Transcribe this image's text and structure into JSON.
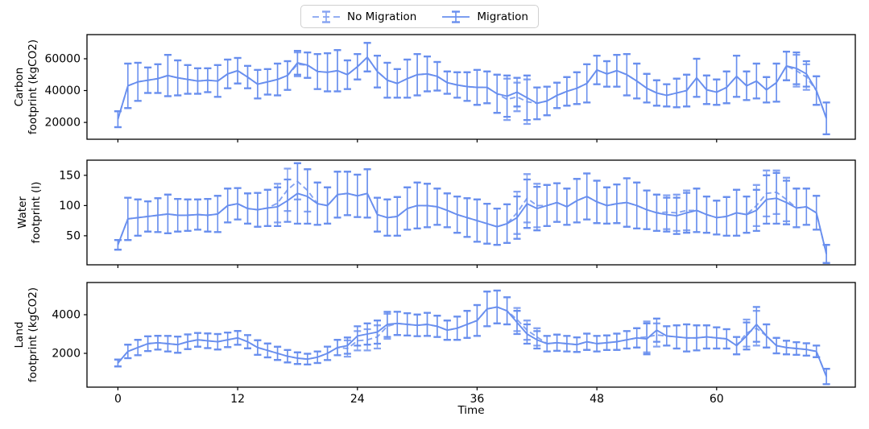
{
  "figure": {
    "series_color": "#698fee",
    "series_color_light": "#85a3f1",
    "axis_color": "#000000",
    "background": "#ffffff"
  },
  "legend": {
    "items": [
      {
        "label": "No Migration",
        "style": "dashed"
      },
      {
        "label": "Migration",
        "style": "solid"
      }
    ]
  },
  "xlabel": "Time",
  "x_ticks": [
    0,
    12,
    24,
    36,
    48,
    60
  ],
  "xlim": [
    -3.1,
    73.9
  ],
  "x_range": {
    "start": 0,
    "end": 71,
    "step": 1
  },
  "chart_data": [
    {
      "type": "line",
      "ylabel": "Carbon\nfootprint (kgCO2)",
      "y_ticks": [
        20000,
        40000,
        60000
      ],
      "ylim": [
        9400,
        75200
      ],
      "err": [
        5000,
        14000,
        12000,
        8000,
        9000,
        13000,
        11000,
        9000,
        8000,
        7500,
        10000,
        9000,
        8000,
        7000,
        9000,
        8000,
        10000,
        9000,
        7500,
        8000,
        11000,
        12000,
        13000,
        9000,
        8000,
        9000,
        10000,
        11000,
        9000,
        12000,
        13000,
        11000,
        9000,
        7000,
        8000,
        9000,
        11000,
        10000,
        12000,
        13000,
        9000,
        14000,
        10000,
        9000,
        8000,
        9000,
        10000,
        12000,
        9000,
        8000,
        10000,
        13000,
        11000,
        9000,
        8000,
        7000,
        9000,
        10000,
        12000,
        9000,
        8000,
        10000,
        13000,
        9000,
        11000,
        8000,
        12000,
        9000,
        10000,
        8000,
        9000,
        10000
      ],
      "series": [
        {
          "name": "No Migration",
          "style": "dashed",
          "values": [
            22000,
            43000,
            45500,
            46500,
            47500,
            49500,
            48000,
            47000,
            46000,
            46500,
            46000,
            50500,
            52500,
            48500,
            44000,
            45500,
            47000,
            49500,
            56500,
            56000,
            52000,
            51500,
            52500,
            50000,
            55000,
            61000,
            52000,
            46500,
            44500,
            47500,
            50000,
            50500,
            49000,
            45000,
            43500,
            42500,
            42000,
            42000,
            38000,
            34500,
            36000,
            33000,
            32000,
            33500,
            37000,
            39500,
            41500,
            44500,
            53000,
            50500,
            52500,
            50000,
            46000,
            41500,
            38500,
            37000,
            38500,
            40000,
            48000,
            40500,
            39000,
            42000,
            49000,
            43000,
            46000,
            40500,
            45000,
            55500,
            52500,
            48500,
            40000,
            22500
          ]
        },
        {
          "name": "Migration",
          "style": "solid",
          "values": [
            22000,
            43000,
            45500,
            46500,
            47500,
            49500,
            48000,
            47000,
            46000,
            46500,
            46000,
            50500,
            52500,
            48500,
            44000,
            45500,
            47000,
            49500,
            57500,
            56000,
            52000,
            51500,
            52500,
            50000,
            55000,
            61000,
            52000,
            46500,
            44500,
            47500,
            50000,
            50500,
            49000,
            45000,
            43500,
            42500,
            42000,
            42000,
            38000,
            36500,
            39000,
            35500,
            32000,
            33500,
            37000,
            39500,
            41500,
            44500,
            53000,
            50500,
            52500,
            50000,
            46000,
            41500,
            38500,
            37000,
            38500,
            40000,
            48000,
            40500,
            39000,
            42000,
            49000,
            43000,
            46000,
            40500,
            45000,
            55500,
            54000,
            50500,
            40000,
            22500
          ]
        }
      ]
    },
    {
      "type": "line",
      "ylabel": "Water\nfootprint (l)",
      "y_ticks": [
        50,
        100,
        150
      ],
      "ylim": [
        2,
        175
      ],
      "err": [
        8,
        35,
        30,
        25,
        28,
        32,
        27,
        26,
        25,
        27,
        30,
        28,
        26,
        25,
        28,
        30,
        32,
        35,
        50,
        45,
        35,
        30,
        38,
        36,
        35,
        40,
        28,
        30,
        32,
        35,
        38,
        36,
        30,
        28,
        30,
        32,
        35,
        33,
        30,
        32,
        35,
        40,
        36,
        34,
        32,
        30,
        36,
        38,
        35,
        30,
        32,
        40,
        38,
        32,
        30,
        28,
        30,
        33,
        36,
        30,
        28,
        32,
        38,
        30,
        34,
        40,
        42,
        36,
        32,
        30,
        28,
        15
      ],
      "series": [
        {
          "name": "No Migration",
          "style": "dashed",
          "values": [
            35,
            78,
            80,
            82,
            84,
            86,
            84,
            84,
            85,
            84,
            86,
            100,
            103,
            95,
            93,
            96,
            104,
            126,
            140,
            125,
            103,
            100,
            118,
            120,
            116,
            120,
            85,
            80,
            82,
            95,
            100,
            100,
            98,
            92,
            85,
            80,
            75,
            70,
            65,
            70,
            88,
            112,
            100,
            100,
            105,
            98,
            108,
            115,
            106,
            100,
            103,
            105,
            100,
            93,
            88,
            89,
            88,
            92,
            92,
            85,
            80,
            82,
            88,
            85,
            100,
            120,
            122,
            110,
            96,
            98,
            88,
            20
          ],
          "err": [
            8,
            35,
            30,
            25,
            28,
            32,
            27,
            26,
            25,
            27,
            30,
            28,
            26,
            25,
            28,
            30,
            32,
            35,
            30,
            35,
            35,
            30,
            38,
            36,
            35,
            40,
            28,
            30,
            32,
            35,
            38,
            36,
            30,
            28,
            30,
            32,
            35,
            33,
            30,
            32,
            35,
            40,
            36,
            34,
            32,
            30,
            36,
            38,
            35,
            30,
            32,
            40,
            38,
            32,
            30,
            28,
            30,
            33,
            36,
            30,
            28,
            32,
            38,
            30,
            34,
            38,
            36,
            36,
            32,
            30,
            28,
            15
          ]
        },
        {
          "name": "Migration",
          "style": "solid",
          "values": [
            35,
            78,
            80,
            82,
            84,
            86,
            84,
            84,
            85,
            84,
            86,
            100,
            103,
            95,
            93,
            96,
            98,
            108,
            120,
            115,
            103,
            100,
            118,
            120,
            116,
            120,
            85,
            80,
            82,
            95,
            100,
            100,
            98,
            92,
            85,
            80,
            75,
            70,
            65,
            70,
            80,
            103,
            95,
            100,
            105,
            98,
            108,
            115,
            106,
            100,
            103,
            105,
            100,
            93,
            88,
            85,
            83,
            88,
            92,
            85,
            80,
            82,
            88,
            85,
            92,
            110,
            112,
            105,
            96,
            98,
            88,
            20
          ]
        }
      ]
    },
    {
      "type": "line",
      "ylabel": "Land\nfootprint (kgCO2)",
      "y_ticks": [
        2000,
        4000
      ],
      "ylim": [
        250,
        5667
      ],
      "err": [
        180,
        350,
        400,
        380,
        360,
        400,
        420,
        380,
        360,
        380,
        400,
        380,
        360,
        340,
        380,
        360,
        340,
        320,
        300,
        280,
        300,
        350,
        400,
        420,
        500,
        550,
        600,
        650,
        600,
        580,
        560,
        600,
        550,
        500,
        600,
        700,
        800,
        900,
        850,
        700,
        600,
        500,
        450,
        400,
        420,
        400,
        380,
        420,
        400,
        380,
        420,
        450,
        500,
        800,
        600,
        500,
        600,
        700,
        650,
        600,
        550,
        500,
        450,
        700,
        900,
        600,
        400,
        350,
        330,
        320,
        300,
        400
      ],
      "series": [
        {
          "name": "No Migration",
          "style": "dashed",
          "values": [
            1500,
            2100,
            2300,
            2500,
            2550,
            2500,
            2450,
            2600,
            2700,
            2650,
            2600,
            2700,
            2800,
            2600,
            2300,
            2150,
            2000,
            1850,
            1750,
            1700,
            1800,
            2000,
            2300,
            2250,
            2650,
            2700,
            2850,
            3400,
            3550,
            3500,
            3450,
            3500,
            3400,
            3200,
            3300,
            3500,
            3700,
            4300,
            4400,
            4200,
            3750,
            3200,
            2850,
            2500,
            2550,
            2500,
            2450,
            2600,
            2500,
            2550,
            2600,
            2700,
            2800,
            2850,
            2950,
            2900,
            2850,
            2800,
            2800,
            2850,
            2800,
            2750,
            2400,
            3050,
            3300,
            2900,
            2400,
            2300,
            2250,
            2200,
            2100,
            800
          ]
        },
        {
          "name": "Migration",
          "style": "solid",
          "values": [
            1500,
            2100,
            2300,
            2500,
            2550,
            2500,
            2450,
            2600,
            2700,
            2650,
            2600,
            2700,
            2800,
            2600,
            2300,
            2150,
            2000,
            1850,
            1750,
            1700,
            1800,
            2000,
            2300,
            2400,
            2900,
            3000,
            3100,
            3500,
            3550,
            3500,
            3450,
            3500,
            3400,
            3200,
            3300,
            3500,
            3700,
            4300,
            4400,
            4200,
            3600,
            3000,
            2700,
            2500,
            2550,
            2500,
            2450,
            2600,
            2500,
            2550,
            2600,
            2700,
            2800,
            2750,
            3200,
            2900,
            2850,
            2800,
            2800,
            2850,
            2800,
            2750,
            2400,
            2900,
            3500,
            2900,
            2400,
            2300,
            2250,
            2200,
            2100,
            800
          ]
        }
      ]
    }
  ]
}
